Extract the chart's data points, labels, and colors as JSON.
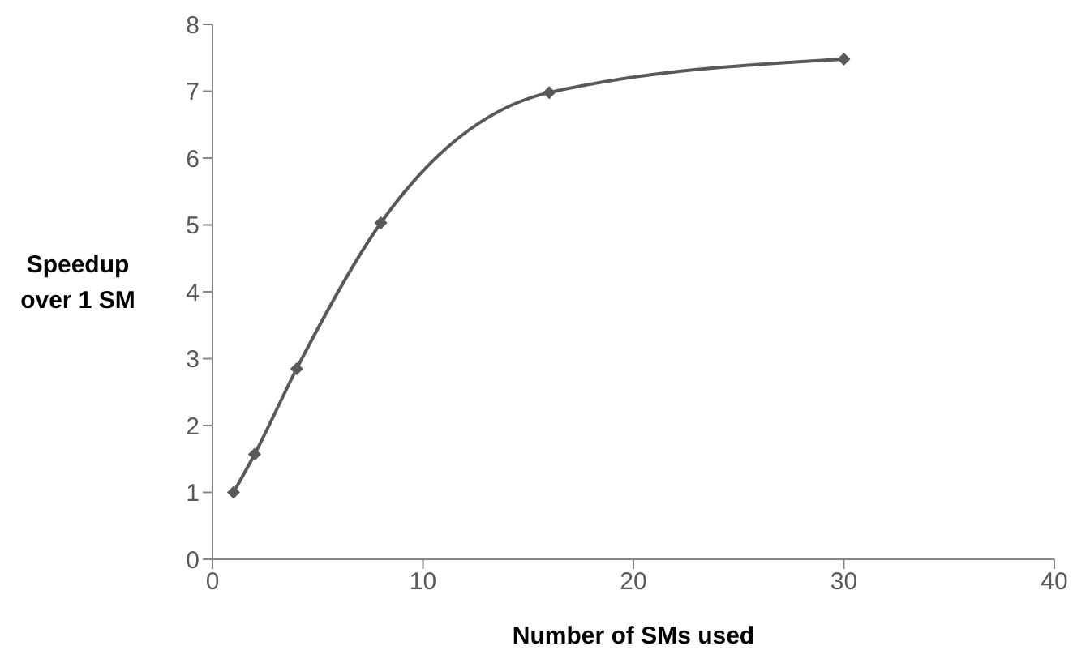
{
  "chart_data": {
    "type": "line",
    "xlabel": "Number of SMs used",
    "ylabel": "Speedup over 1 SM",
    "x": [
      1,
      2,
      4,
      8,
      16,
      30
    ],
    "series": [
      {
        "color": "#595959",
        "values": [
          1,
          1.57,
          2.85,
          5.03,
          6.98,
          7.48
        ]
      }
    ],
    "xlim": [
      0,
      40
    ],
    "xticks": [
      0,
      10,
      20,
      30,
      40
    ],
    "ylim": [
      0,
      8
    ],
    "yticks": [
      0,
      1,
      2,
      3,
      4,
      5,
      6,
      7,
      8
    ],
    "marker": "diamond",
    "line_style": "solid",
    "grid": false,
    "legend": false
  }
}
